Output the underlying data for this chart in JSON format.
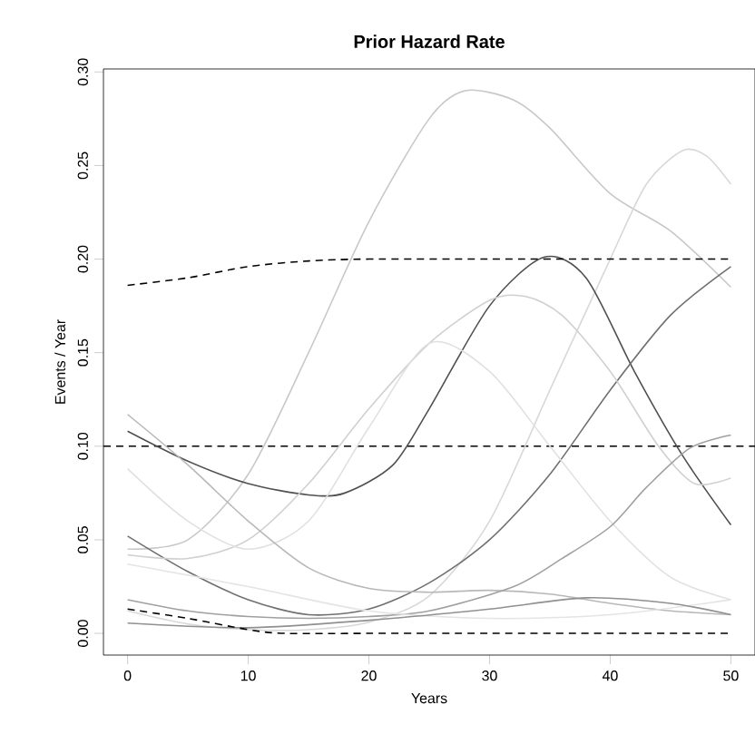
{
  "chart_data": {
    "type": "line",
    "title": "Prior Hazard Rate",
    "xlabel": "Years",
    "ylabel": "Events / Year",
    "xlim": [
      -2,
      52
    ],
    "ylim": [
      -0.0116,
      0.3016
    ],
    "xticks": [
      0,
      10,
      20,
      30,
      40,
      50
    ],
    "yticks": [
      {
        "value": 0,
        "label": "0.00"
      },
      {
        "value": 0.05,
        "label": "0.05"
      },
      {
        "value": 0.1,
        "label": "0.10"
      },
      {
        "value": 0.15,
        "label": "0.15"
      },
      {
        "value": 0.2,
        "label": "0.20"
      },
      {
        "value": 0.25,
        "label": "0.25"
      },
      {
        "value": 0.3,
        "label": "0.30"
      }
    ],
    "grid": false,
    "ref_lines": [
      {
        "axis": "y",
        "value": 0.1,
        "color": "#000000",
        "line_style": "dashed"
      }
    ],
    "series": [
      {
        "color": "#c8c8c8",
        "x": [
          0,
          5,
          10,
          15,
          20,
          25,
          28,
          32,
          35,
          40,
          45,
          50
        ],
        "values": [
          0.045,
          0.05,
          0.085,
          0.15,
          0.22,
          0.275,
          0.29,
          0.285,
          0.27,
          0.235,
          0.215,
          0.185
        ]
      },
      {
        "color": "#d8d8d8",
        "x": [
          0,
          5,
          10,
          15,
          20,
          25,
          30,
          35,
          40,
          43,
          46,
          48,
          50
        ],
        "values": [
          0.012,
          0.005,
          0.002,
          0.002,
          0.006,
          0.02,
          0.06,
          0.13,
          0.2,
          0.24,
          0.258,
          0.255,
          0.24
        ]
      },
      {
        "color": "#505050",
        "x": [
          0,
          5,
          10,
          15,
          18,
          22,
          25,
          30,
          34.5,
          38,
          42,
          46,
          50
        ],
        "values": [
          0.108,
          0.092,
          0.08,
          0.074,
          0.075,
          0.09,
          0.12,
          0.175,
          0.201,
          0.19,
          0.14,
          0.095,
          0.058
        ]
      },
      {
        "color": "#707070",
        "x": [
          0,
          5,
          10,
          15,
          20,
          25,
          30,
          35,
          40,
          45,
          50
        ],
        "values": [
          0.052,
          0.033,
          0.018,
          0.01,
          0.013,
          0.027,
          0.05,
          0.085,
          0.13,
          0.17,
          0.196
        ]
      },
      {
        "color": "#d0d0d0",
        "x": [
          0,
          5,
          10,
          15,
          20,
          25,
          30,
          33,
          36,
          40,
          44,
          47,
          50
        ],
        "values": [
          0.042,
          0.04,
          0.05,
          0.08,
          0.12,
          0.155,
          0.178,
          0.18,
          0.17,
          0.14,
          0.1,
          0.08,
          0.083
        ]
      },
      {
        "color": "#e0e0e0",
        "x": [
          0,
          5,
          10,
          15,
          20,
          25,
          30,
          35,
          40,
          45,
          50
        ],
        "values": [
          0.088,
          0.06,
          0.045,
          0.06,
          0.11,
          0.155,
          0.14,
          0.1,
          0.06,
          0.03,
          0.018
        ]
      },
      {
        "color": "#b8b8b8",
        "x": [
          0,
          5,
          10,
          15,
          20,
          25,
          30,
          35,
          40,
          45,
          50
        ],
        "values": [
          0.117,
          0.09,
          0.06,
          0.035,
          0.024,
          0.022,
          0.023,
          0.021,
          0.016,
          0.012,
          0.01
        ]
      },
      {
        "color": "#a0a0a0",
        "x": [
          0,
          5,
          10,
          15,
          20,
          25,
          32,
          36,
          40,
          43,
          46.6,
          50
        ],
        "values": [
          0.018,
          0.012,
          0.009,
          0.008,
          0.009,
          0.012,
          0.025,
          0.04,
          0.057,
          0.078,
          0.099,
          0.106
        ]
      },
      {
        "color": "#e4e4e4",
        "x": [
          0,
          10,
          20,
          30,
          40,
          50
        ],
        "values": [
          0.037,
          0.025,
          0.012,
          0.008,
          0.01,
          0.018
        ]
      },
      {
        "color": "#909090",
        "x": [
          0,
          10,
          20,
          30,
          38,
          45,
          50
        ],
        "values": [
          0.0055,
          0.003,
          0.007,
          0.013,
          0.019,
          0.016,
          0.01
        ]
      },
      {
        "color": "#000000",
        "line_style": "dashed",
        "x": [
          0,
          5,
          10,
          13,
          20,
          30,
          40,
          50
        ],
        "values": [
          0.013,
          0.008,
          0.002,
          0.0,
          0.0,
          0.0,
          0.0,
          0.0
        ]
      },
      {
        "color": "#000000",
        "line_style": "dashed",
        "x": [
          0,
          5,
          10,
          15,
          20,
          30,
          40,
          50
        ],
        "values": [
          0.186,
          0.19,
          0.196,
          0.199,
          0.2,
          0.2,
          0.2,
          0.2
        ]
      }
    ]
  }
}
